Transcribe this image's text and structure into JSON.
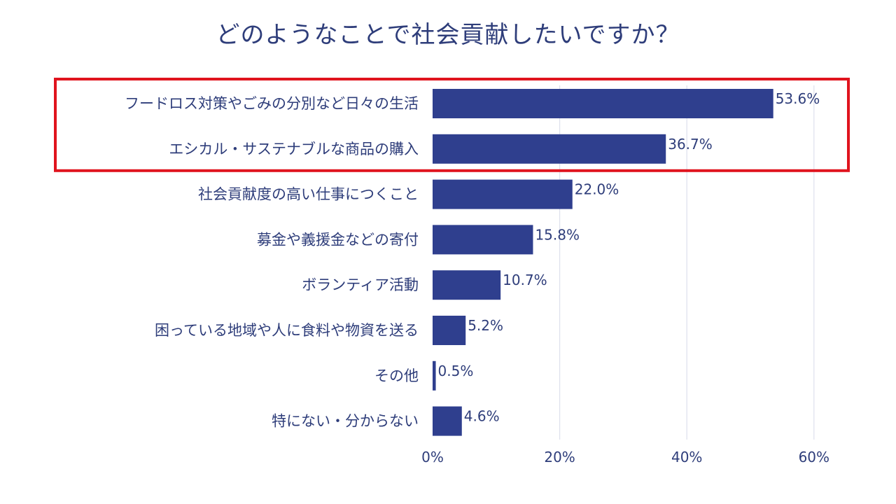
{
  "chart_data": {
    "type": "bar",
    "orientation": "horizontal",
    "title": "どのようなことで社会貢献したいですか？",
    "categories": [
      "フードロス対策やごみの分別など日々の生活",
      "エシカル・サステナブルな商品の購入",
      "社会貢献度の高い仕事につくこと",
      "募金や義援金などの寄付",
      "ボランティア活動",
      "困っている地域や人に食料や物資を送る",
      "その他",
      "特にない・分からない"
    ],
    "values": [
      53.6,
      36.7,
      22.0,
      15.8,
      10.7,
      5.2,
      0.5,
      4.6
    ],
    "value_labels": [
      "53.6%",
      "36.7%",
      "22.0%",
      "15.8%",
      "10.7%",
      "5.2%",
      "0.5%",
      "4.6%"
    ],
    "xlim": [
      0,
      60
    ],
    "x_ticks": [
      0,
      20,
      40,
      60
    ],
    "x_tick_labels": [
      "0%",
      "20%",
      "40%",
      "60%"
    ],
    "grid": true,
    "highlighted_categories": [
      0,
      1
    ],
    "colors": {
      "bar": "#2f3f8e",
      "text": "#2e3d7a",
      "grid": "#dde0ec",
      "highlight_box": "#e0141e"
    }
  }
}
